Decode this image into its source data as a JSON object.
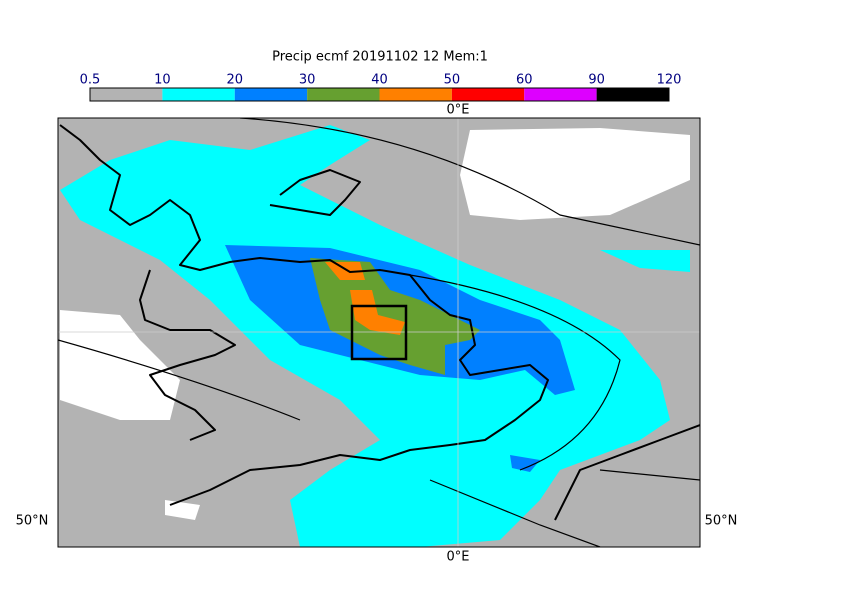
{
  "title": "Precip ecmf 20191102 12 Mem:1",
  "colorbar": {
    "levels": [
      0.5,
      10,
      20,
      30,
      40,
      50,
      60,
      90,
      120
    ],
    "colors": [
      "#b3b3b3",
      "#00ffff",
      "#0080ff",
      "#66a030",
      "#ff8000",
      "#ff0000",
      "#dd00ff",
      "#000000"
    ]
  },
  "axis_labels": {
    "top": "0°E",
    "bottom": "0°E",
    "left": "50°N",
    "right": "50°N"
  }
}
